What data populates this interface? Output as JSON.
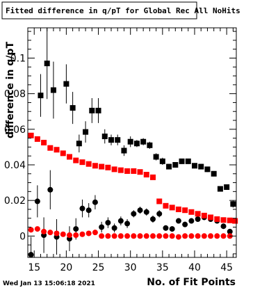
{
  "chart_data": {
    "type": "scatter",
    "title": "Fitted difference in q/pT for Global Rec All NoHits",
    "xlabel": "No. of Fit Points",
    "ylabel": "difference in q/pT",
    "xlim": [
      14,
      46.5
    ],
    "ylim": [
      -0.012,
      0.117
    ],
    "x_ticks": [
      15,
      20,
      25,
      30,
      35,
      40,
      45
    ],
    "x_tick_labels": [
      "15",
      "20",
      "25",
      "30",
      "35",
      "40",
      "45"
    ],
    "y_ticks": [
      0,
      0.02,
      0.04,
      0.06,
      0.08,
      0.1
    ],
    "y_tick_labels": [
      "0",
      "0.02",
      "0.04",
      "0.06",
      "0.08",
      "0.1"
    ],
    "grid": false,
    "timestamp": "Wed Jan 13 15:06:18 2021",
    "series": [
      {
        "marker": "square",
        "color": "#000000",
        "points": [
          {
            "x": 16,
            "y": 0.079,
            "err": 0.012
          },
          {
            "x": 17,
            "y": 0.097,
            "err": 0.02
          },
          {
            "x": 18,
            "y": 0.082,
            "err": 0.016
          },
          {
            "x": 20,
            "y": 0.0855,
            "err": 0.011
          },
          {
            "x": 21,
            "y": 0.072,
            "err": 0.009
          },
          {
            "x": 22,
            "y": 0.052,
            "err": 0.005
          },
          {
            "x": 23,
            "y": 0.0585,
            "err": 0.006
          },
          {
            "x": 24,
            "y": 0.0705,
            "err": 0.007
          },
          {
            "x": 25,
            "y": 0.0705,
            "err": 0.007
          },
          {
            "x": 26,
            "y": 0.056,
            "err": 0.004
          },
          {
            "x": 27,
            "y": 0.054,
            "err": 0.003
          },
          {
            "x": 28,
            "y": 0.054,
            "err": 0.003
          },
          {
            "x": 29,
            "y": 0.048,
            "err": 0.003
          },
          {
            "x": 30,
            "y": 0.053,
            "err": 0.003
          },
          {
            "x": 31,
            "y": 0.052,
            "err": 0.002
          },
          {
            "x": 32,
            "y": 0.053,
            "err": 0.002
          },
          {
            "x": 33,
            "y": 0.051,
            "err": 0.002
          },
          {
            "x": 34,
            "y": 0.0445,
            "err": 0.002
          },
          {
            "x": 35,
            "y": 0.042,
            "err": 0.002
          },
          {
            "x": 36,
            "y": 0.039,
            "err": 0.0015
          },
          {
            "x": 37,
            "y": 0.04,
            "err": 0.0015
          },
          {
            "x": 38,
            "y": 0.042,
            "err": 0.0015
          },
          {
            "x": 39,
            "y": 0.042,
            "err": 0.0015
          },
          {
            "x": 40,
            "y": 0.0395,
            "err": 0.0015
          },
          {
            "x": 41,
            "y": 0.039,
            "err": 0.0015
          },
          {
            "x": 42,
            "y": 0.0375,
            "err": 0.0015
          },
          {
            "x": 43,
            "y": 0.035,
            "err": 0.0015
          },
          {
            "x": 44,
            "y": 0.0265,
            "err": 0.0015
          },
          {
            "x": 45,
            "y": 0.0275,
            "err": 0.0015
          },
          {
            "x": 46,
            "y": 0.018,
            "err": 0.002
          }
        ]
      },
      {
        "marker": "circle",
        "color": "#000000",
        "points": [
          {
            "x": 14.5,
            "y": -0.0105,
            "err": 0.01
          },
          {
            "x": 15.5,
            "y": 0.0195,
            "err": 0.009
          },
          {
            "x": 16.5,
            "y": 0.0005,
            "err": 0.01
          },
          {
            "x": 17.5,
            "y": 0.026,
            "err": 0.011
          },
          {
            "x": 18.5,
            "y": -0.0005,
            "err": 0.01
          },
          {
            "x": 20.5,
            "y": -0.0015,
            "err": 0.007
          },
          {
            "x": 21.5,
            "y": 0.004,
            "err": 0.006
          },
          {
            "x": 22.5,
            "y": 0.0155,
            "err": 0.005
          },
          {
            "x": 23.5,
            "y": 0.0145,
            "err": 0.004
          },
          {
            "x": 24.5,
            "y": 0.019,
            "err": 0.004
          },
          {
            "x": 25.5,
            "y": 0.005,
            "err": 0.003
          },
          {
            "x": 26.5,
            "y": 0.0075,
            "err": 0.003
          },
          {
            "x": 27.5,
            "y": 0.0045,
            "err": 0.0025
          },
          {
            "x": 28.5,
            "y": 0.0085,
            "err": 0.0025
          },
          {
            "x": 29.5,
            "y": 0.007,
            "err": 0.0025
          },
          {
            "x": 30.5,
            "y": 0.0125,
            "err": 0.002
          },
          {
            "x": 31.5,
            "y": 0.0145,
            "err": 0.002
          },
          {
            "x": 32.5,
            "y": 0.0135,
            "err": 0.002
          },
          {
            "x": 33.5,
            "y": 0.0095,
            "err": 0.002
          },
          {
            "x": 34.5,
            "y": 0.0125,
            "err": 0.002
          },
          {
            "x": 35.5,
            "y": 0.0045,
            "err": 0.0015
          },
          {
            "x": 36.5,
            "y": 0.004,
            "err": 0.0015
          },
          {
            "x": 37.5,
            "y": 0.0085,
            "err": 0.0015
          },
          {
            "x": 38.5,
            "y": 0.0065,
            "err": 0.0015
          },
          {
            "x": 39.5,
            "y": 0.0085,
            "err": 0.0015
          },
          {
            "x": 40.5,
            "y": 0.0095,
            "err": 0.0015
          },
          {
            "x": 41.5,
            "y": 0.0105,
            "err": 0.0015
          },
          {
            "x": 42.5,
            "y": 0.0095,
            "err": 0.0015
          },
          {
            "x": 43.5,
            "y": 0.0085,
            "err": 0.0015
          },
          {
            "x": 44.5,
            "y": 0.0055,
            "err": 0.0015
          },
          {
            "x": 45.5,
            "y": 0.0025,
            "err": 0.0015
          }
        ]
      },
      {
        "marker": "square",
        "color": "#ff0000",
        "points": [
          {
            "x": 14.5,
            "y": 0.0565
          },
          {
            "x": 15.5,
            "y": 0.0545
          },
          {
            "x": 16.5,
            "y": 0.0525
          },
          {
            "x": 17.5,
            "y": 0.0495
          },
          {
            "x": 18.5,
            "y": 0.0485
          },
          {
            "x": 19.5,
            "y": 0.0465
          },
          {
            "x": 20.5,
            "y": 0.0445
          },
          {
            "x": 21.5,
            "y": 0.0425
          },
          {
            "x": 22.5,
            "y": 0.0415
          },
          {
            "x": 23.5,
            "y": 0.0405
          },
          {
            "x": 24.5,
            "y": 0.0395
          },
          {
            "x": 25.5,
            "y": 0.039
          },
          {
            "x": 26.5,
            "y": 0.0385
          },
          {
            "x": 27.5,
            "y": 0.0375
          },
          {
            "x": 28.5,
            "y": 0.037
          },
          {
            "x": 29.5,
            "y": 0.0365
          },
          {
            "x": 30.5,
            "y": 0.0365
          },
          {
            "x": 31.5,
            "y": 0.036
          },
          {
            "x": 32.5,
            "y": 0.0345
          },
          {
            "x": 33.5,
            "y": 0.033
          },
          {
            "x": 34.5,
            "y": 0.0195
          },
          {
            "x": 35.5,
            "y": 0.017
          },
          {
            "x": 36.5,
            "y": 0.016
          },
          {
            "x": 37.5,
            "y": 0.015
          },
          {
            "x": 38.5,
            "y": 0.0145
          },
          {
            "x": 39.5,
            "y": 0.0135
          },
          {
            "x": 40.5,
            "y": 0.0125
          },
          {
            "x": 41.5,
            "y": 0.0115
          },
          {
            "x": 42.5,
            "y": 0.0105
          },
          {
            "x": 43.5,
            "y": 0.0095
          },
          {
            "x": 44.5,
            "y": 0.009
          },
          {
            "x": 45.5,
            "y": 0.0088
          },
          {
            "x": 46.3,
            "y": 0.0085
          }
        ]
      },
      {
        "marker": "circle",
        "color": "#ff0000",
        "points": [
          {
            "x": 14.5,
            "y": 0.0035
          },
          {
            "x": 15.5,
            "y": 0.004
          },
          {
            "x": 16.5,
            "y": 0.0025
          },
          {
            "x": 17.5,
            "y": 0.002
          },
          {
            "x": 18.5,
            "y": 0.0015
          },
          {
            "x": 19.5,
            "y": 0.001
          },
          {
            "x": 20.5,
            "y": 0.0005
          },
          {
            "x": 21.5,
            "y": 0.0005
          },
          {
            "x": 22.5,
            "y": 0.001
          },
          {
            "x": 23.5,
            "y": 0.0015
          },
          {
            "x": 24.5,
            "y": 0.002
          },
          {
            "x": 25.5,
            "y": 0.0
          },
          {
            "x": 26.5,
            "y": 0.0
          },
          {
            "x": 27.5,
            "y": 0.0
          },
          {
            "x": 28.5,
            "y": 0.0
          },
          {
            "x": 29.5,
            "y": 0.0
          },
          {
            "x": 30.5,
            "y": 0.0
          },
          {
            "x": 31.5,
            "y": 0.0
          },
          {
            "x": 32.5,
            "y": 0.0
          },
          {
            "x": 33.5,
            "y": 0.0
          },
          {
            "x": 34.5,
            "y": 0.0
          },
          {
            "x": 35.5,
            "y": 0.0
          },
          {
            "x": 36.5,
            "y": 0.0
          },
          {
            "x": 37.5,
            "y": -0.0005
          },
          {
            "x": 38.5,
            "y": 0.0
          },
          {
            "x": 39.5,
            "y": 0.0
          },
          {
            "x": 40.5,
            "y": 0.0
          },
          {
            "x": 41.5,
            "y": 0.0
          },
          {
            "x": 42.5,
            "y": 0.0
          },
          {
            "x": 43.5,
            "y": 0.0
          },
          {
            "x": 44.5,
            "y": 0.0
          },
          {
            "x": 45.5,
            "y": 0.0
          }
        ]
      }
    ]
  }
}
